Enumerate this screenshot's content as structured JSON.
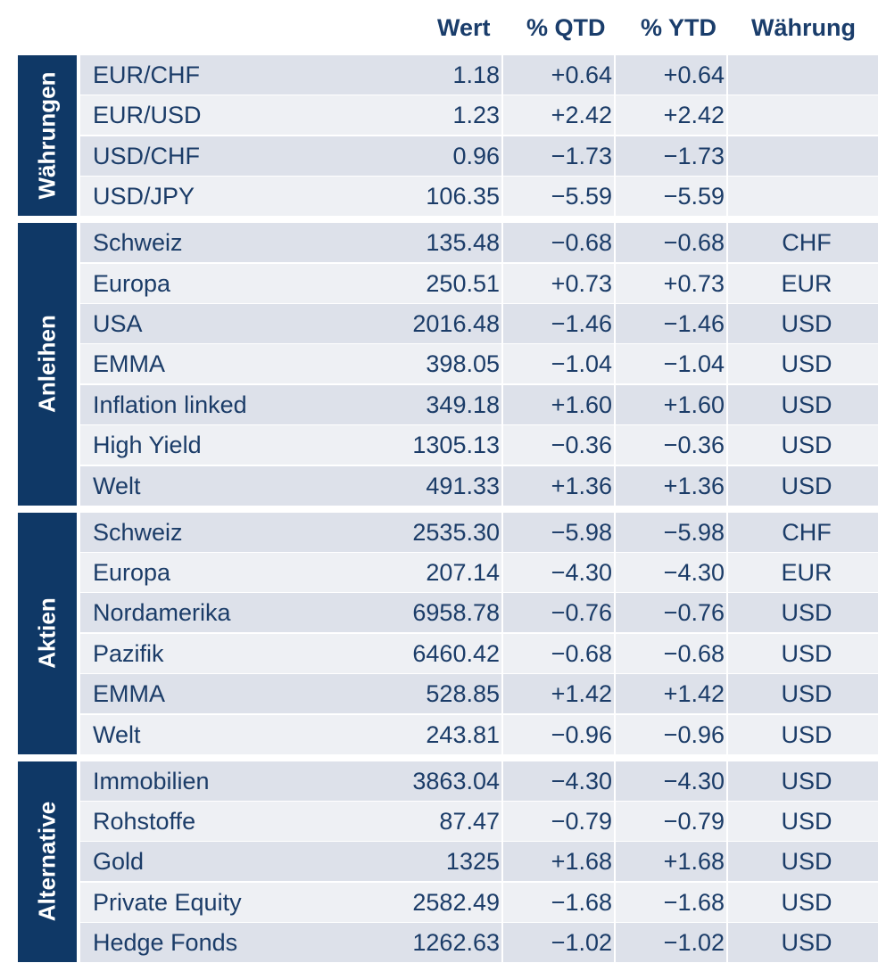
{
  "chart_data": {
    "type": "table",
    "columns": [
      "Wert",
      "% QTD",
      "% YTD",
      "Währung"
    ],
    "sections": [
      {
        "label": "Währungen",
        "rows": [
          {
            "name": "EUR/CHF",
            "wert": "1.18",
            "qtd": "+0.64",
            "ytd": "+0.64",
            "currency": ""
          },
          {
            "name": "EUR/USD",
            "wert": "1.23",
            "qtd": "+2.42",
            "ytd": "+2.42",
            "currency": ""
          },
          {
            "name": "USD/CHF",
            "wert": "0.96",
            "qtd": "−1.73",
            "ytd": "−1.73",
            "currency": ""
          },
          {
            "name": "USD/JPY",
            "wert": "106.35",
            "qtd": "−5.59",
            "ytd": "−5.59",
            "currency": ""
          }
        ]
      },
      {
        "label": "Anleihen",
        "rows": [
          {
            "name": "Schweiz",
            "wert": "135.48",
            "qtd": "−0.68",
            "ytd": "−0.68",
            "currency": "CHF"
          },
          {
            "name": "Europa",
            "wert": "250.51",
            "qtd": "+0.73",
            "ytd": "+0.73",
            "currency": "EUR"
          },
          {
            "name": "USA",
            "wert": "2016.48",
            "qtd": "−1.46",
            "ytd": "−1.46",
            "currency": "USD"
          },
          {
            "name": "EMMA",
            "wert": "398.05",
            "qtd": "−1.04",
            "ytd": "−1.04",
            "currency": "USD"
          },
          {
            "name": "Inflation linked",
            "wert": "349.18",
            "qtd": "+1.60",
            "ytd": "+1.60",
            "currency": "USD"
          },
          {
            "name": "High Yield",
            "wert": "1305.13",
            "qtd": "−0.36",
            "ytd": "−0.36",
            "currency": "USD"
          },
          {
            "name": "Welt",
            "wert": "491.33",
            "qtd": "+1.36",
            "ytd": "+1.36",
            "currency": "USD"
          }
        ]
      },
      {
        "label": "Aktien",
        "rows": [
          {
            "name": "Schweiz",
            "wert": "2535.30",
            "qtd": "−5.98",
            "ytd": "−5.98",
            "currency": "CHF"
          },
          {
            "name": "Europa",
            "wert": "207.14",
            "qtd": "−4.30",
            "ytd": "−4.30",
            "currency": "EUR"
          },
          {
            "name": "Nordamerika",
            "wert": "6958.78",
            "qtd": "−0.76",
            "ytd": "−0.76",
            "currency": "USD"
          },
          {
            "name": "Pazifik",
            "wert": "6460.42",
            "qtd": "−0.68",
            "ytd": "−0.68",
            "currency": "USD"
          },
          {
            "name": "EMMA",
            "wert": "528.85",
            "qtd": "+1.42",
            "ytd": "+1.42",
            "currency": "USD"
          },
          {
            "name": "Welt",
            "wert": "243.81",
            "qtd": "−0.96",
            "ytd": "−0.96",
            "currency": "USD"
          }
        ]
      },
      {
        "label": "Alternative",
        "rows": [
          {
            "name": "Immobilien",
            "wert": "3863.04",
            "qtd": "−4.30",
            "ytd": "−4.30",
            "currency": "USD"
          },
          {
            "name": "Rohstoffe",
            "wert": "87.47",
            "qtd": "−0.79",
            "ytd": "−0.79",
            "currency": "USD"
          },
          {
            "name": "Gold",
            "wert": "1325",
            "qtd": "+1.68",
            "ytd": "+1.68",
            "currency": "USD"
          },
          {
            "name": "Private Equity",
            "wert": "2582.49",
            "qtd": "−1.68",
            "ytd": "−1.68",
            "currency": "USD"
          },
          {
            "name": "Hedge Fonds",
            "wert": "1262.63",
            "qtd": "−1.02",
            "ytd": "−1.02",
            "currency": "USD"
          }
        ]
      }
    ]
  },
  "colors": {
    "header_text": "#1a3d6b",
    "section_label_bg": "#0f3866",
    "row_shade": "#dde1ea",
    "row_light": "#eef0f4",
    "cell_text": "#1b3c68"
  }
}
